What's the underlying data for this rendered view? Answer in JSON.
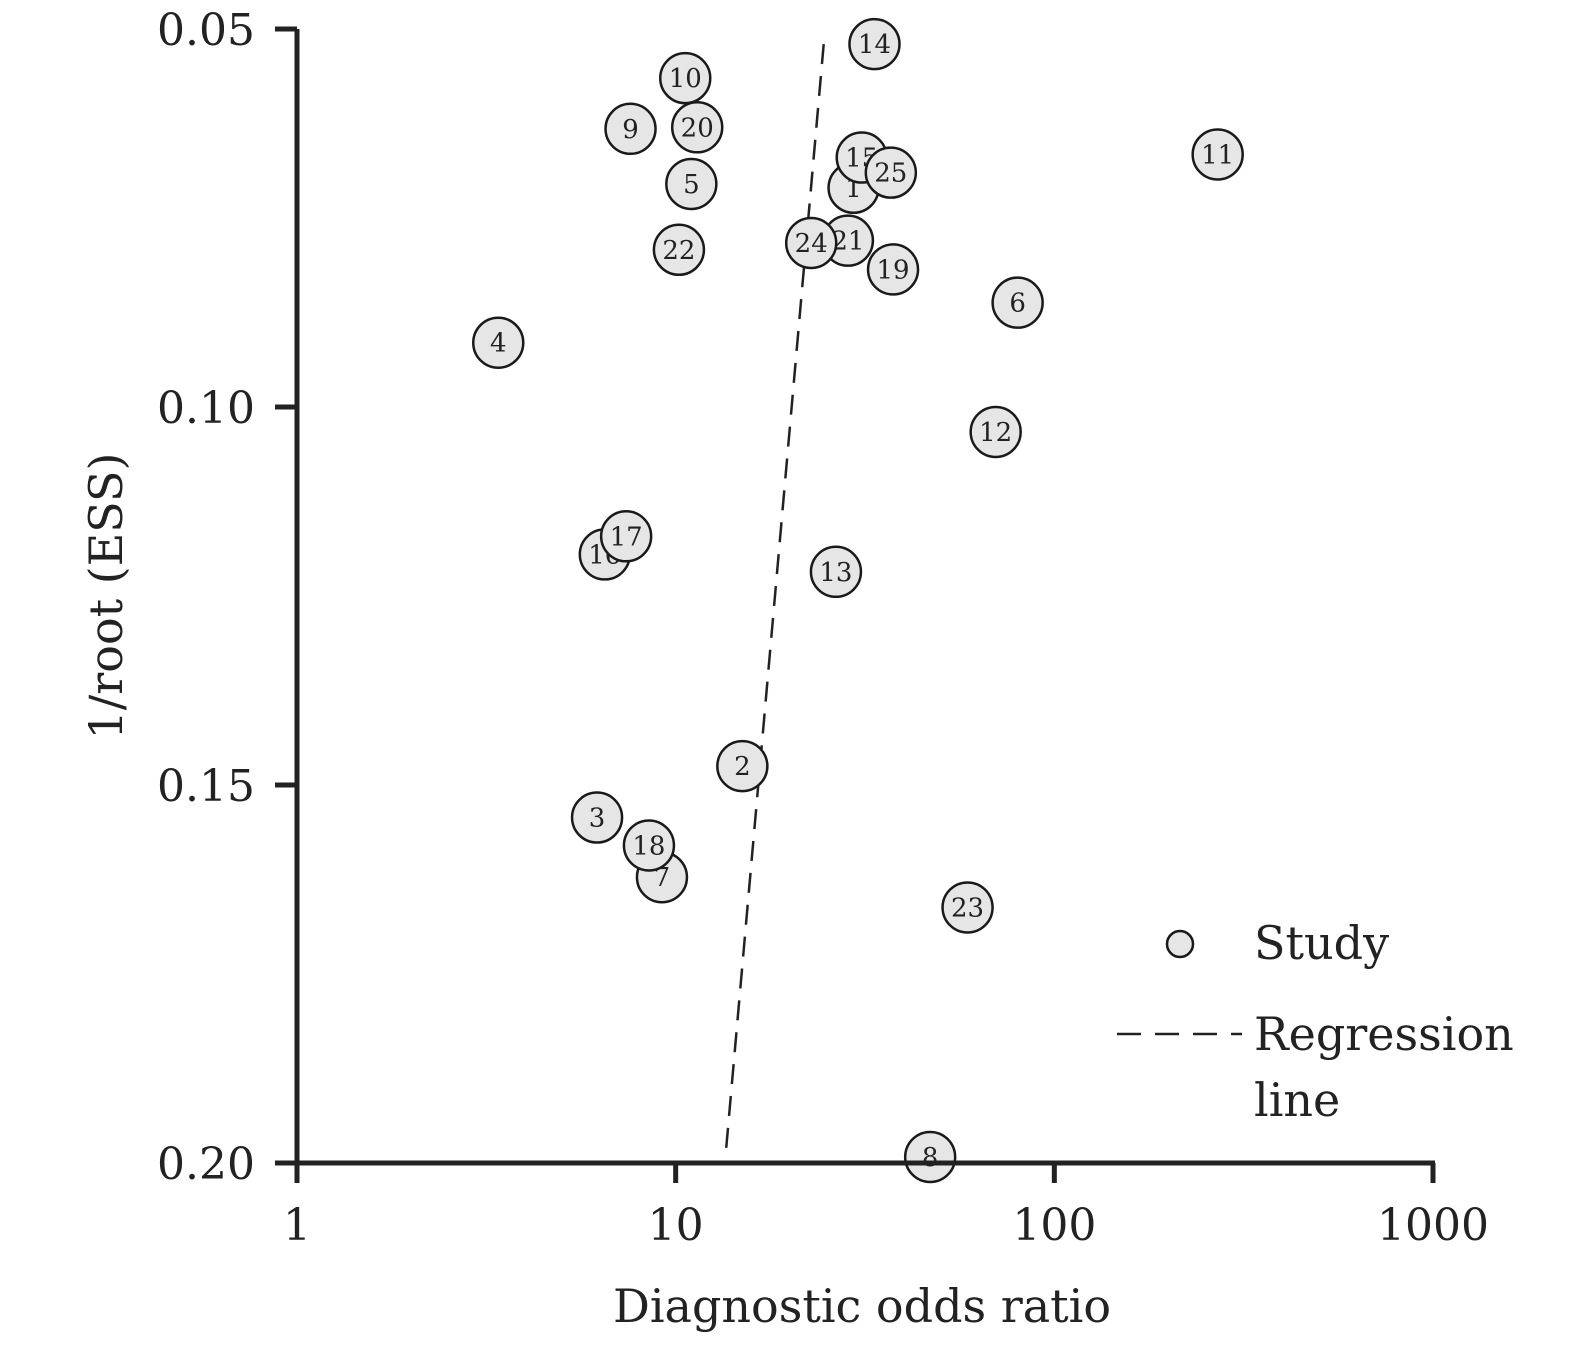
{
  "chart_data": {
    "type": "scatter",
    "title": "",
    "xlabel": "Diagnostic odds ratio",
    "ylabel": "1/root (ESS)",
    "x_scale": "log",
    "xlim": [
      1,
      1000
    ],
    "ylim": [
      0.05,
      0.2
    ],
    "y_inverted": true,
    "x_ticks": [
      1,
      10,
      100,
      1000
    ],
    "x_tick_labels": [
      "1",
      "10",
      "100",
      "1000"
    ],
    "y_ticks": [
      0.05,
      0.1,
      0.15,
      0.2
    ],
    "y_tick_labels": [
      "0.05",
      "0.10",
      "0.15",
      "0.20"
    ],
    "grid": false,
    "legend_position": "bottom-right",
    "colors": {
      "point_fill": "#e6e6e6",
      "point_stroke": "#1a1a1a",
      "axis": "#222222"
    },
    "series": [
      {
        "name": "Study",
        "marker": "circle",
        "points": [
          {
            "label": "1",
            "x": 29.5,
            "y": 0.071
          },
          {
            "label": "2",
            "x": 15.0,
            "y": 0.1475
          },
          {
            "label": "3",
            "x": 6.2,
            "y": 0.1543
          },
          {
            "label": "4",
            "x": 3.4,
            "y": 0.0915
          },
          {
            "label": "5",
            "x": 11.0,
            "y": 0.0705
          },
          {
            "label": "6",
            "x": 80.0,
            "y": 0.0862
          },
          {
            "label": "7",
            "x": 9.2,
            "y": 0.1622
          },
          {
            "label": "8",
            "x": 47.0,
            "y": 0.1992
          },
          {
            "label": "9",
            "x": 7.6,
            "y": 0.0632
          },
          {
            "label": "10",
            "x": 10.6,
            "y": 0.0565
          },
          {
            "label": "11",
            "x": 270.0,
            "y": 0.0666
          },
          {
            "label": "12",
            "x": 70.0,
            "y": 0.1033
          },
          {
            "label": "13",
            "x": 26.5,
            "y": 0.1218
          },
          {
            "label": "14",
            "x": 33.5,
            "y": 0.052
          },
          {
            "label": "15",
            "x": 31.0,
            "y": 0.067
          },
          {
            "label": "16",
            "x": 6.5,
            "y": 0.1195
          },
          {
            "label": "17",
            "x": 7.4,
            "y": 0.1171
          },
          {
            "label": "18",
            "x": 8.5,
            "y": 0.158
          },
          {
            "label": "19",
            "x": 37.5,
            "y": 0.0818
          },
          {
            "label": "20",
            "x": 11.4,
            "y": 0.063
          },
          {
            "label": "21",
            "x": 28.5,
            "y": 0.078
          },
          {
            "label": "22",
            "x": 10.2,
            "y": 0.0792
          },
          {
            "label": "23",
            "x": 59.0,
            "y": 0.1662
          },
          {
            "label": "24",
            "x": 22.8,
            "y": 0.0783
          },
          {
            "label": "25",
            "x": 37.0,
            "y": 0.069
          }
        ]
      },
      {
        "name": "Regression line",
        "line_style": "dashed",
        "points": [
          {
            "x": 24.6,
            "y": 0.052
          },
          {
            "x": 13.6,
            "y": 0.198
          }
        ]
      }
    ],
    "legend": [
      {
        "label": "Study",
        "marker": "circle"
      },
      {
        "label": "Regression\nline",
        "marker": "dashed-line"
      }
    ]
  }
}
